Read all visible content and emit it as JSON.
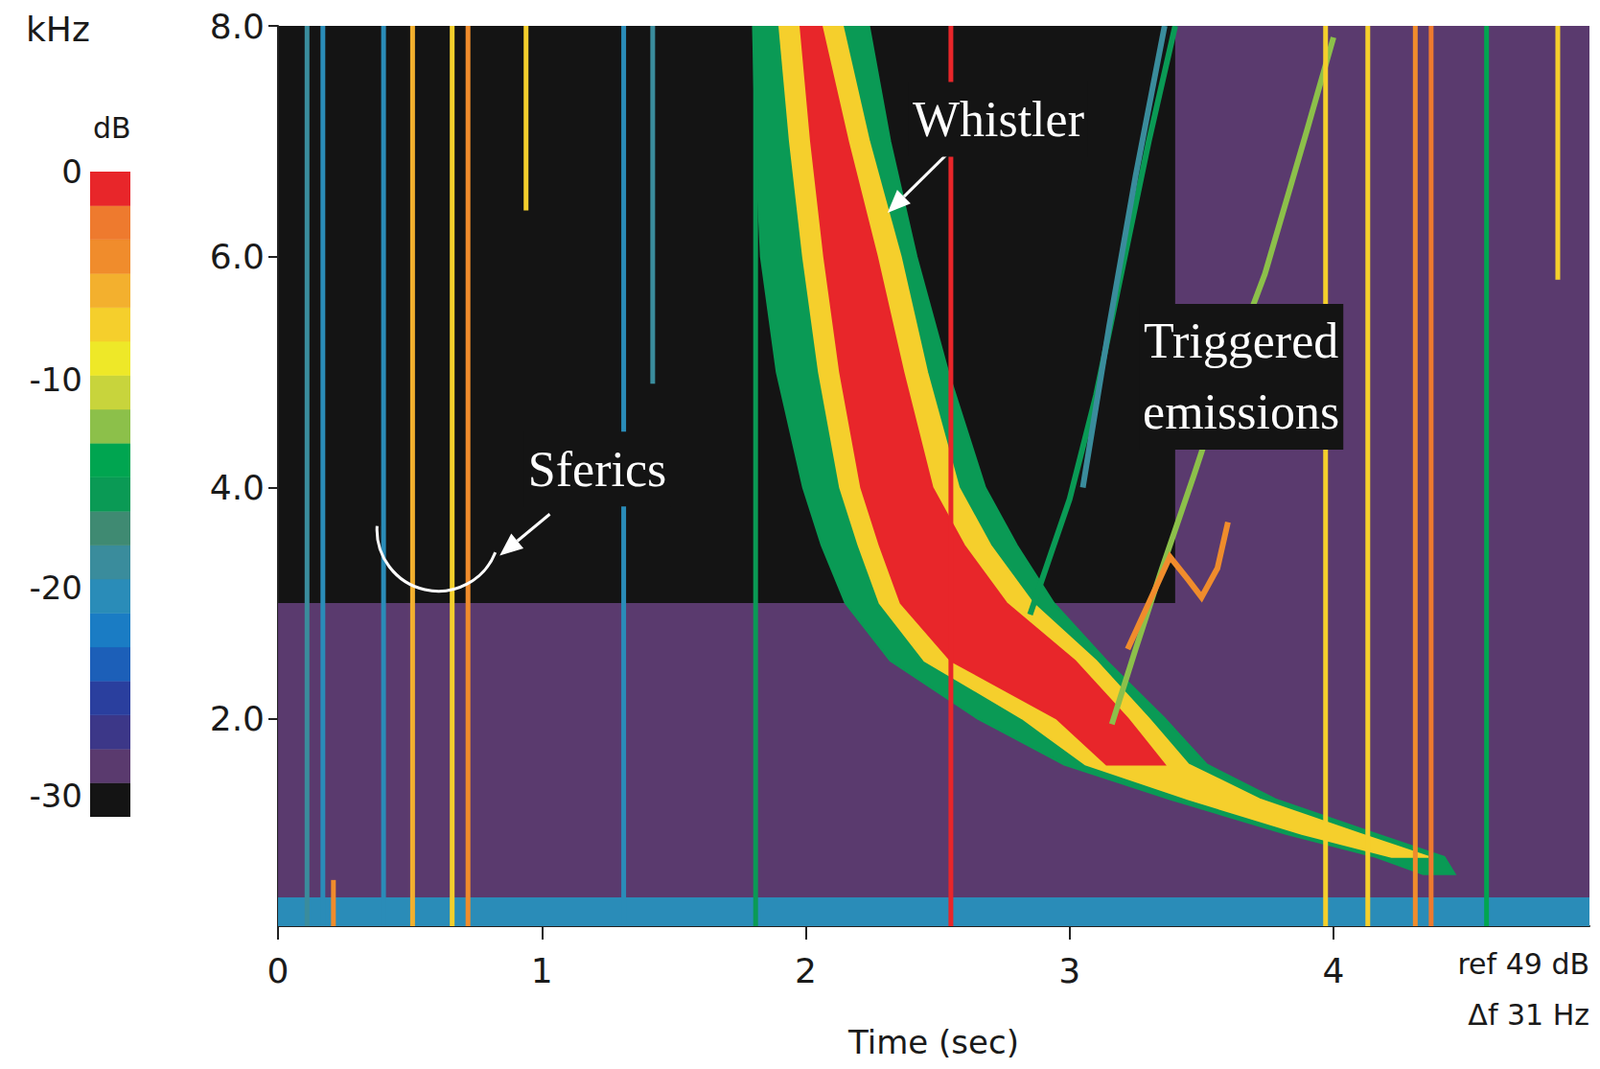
{
  "chart_data": {
    "type": "spectrogram",
    "xlabel": "Time (sec)",
    "ylabel": "kHz",
    "xlim": [
      0,
      4.97
    ],
    "xticks": [
      0,
      1,
      2,
      3,
      4
    ],
    "ylim": [
      0.2,
      8.0
    ],
    "yticks": [
      {
        "value": 2,
        "label": "2.0"
      },
      {
        "value": 4,
        "label": "4.0"
      },
      {
        "value": 6,
        "label": "6.0"
      },
      {
        "value": 8,
        "label": "8.0"
      }
    ],
    "colorbar": {
      "label": "dB",
      "range": [
        -31,
        0
      ],
      "ticks": [
        0,
        -10,
        -20,
        -30
      ],
      "colors": [
        "#141414",
        "#5a3a6e",
        "#3c3788",
        "#2a3f9e",
        "#1c5fb8",
        "#1a7cc4",
        "#2a8cb8",
        "#3a8c9c",
        "#3f8a72",
        "#0a9a55",
        "#00a550",
        "#8cc04a",
        "#c8d43c",
        "#eee828",
        "#f5cf2c",
        "#f3b02e",
        "#f08c2c",
        "#ee7a2e",
        "#e8262a"
      ]
    },
    "notes": [
      "ref 49 dB",
      "Δf 31 Hz"
    ],
    "noise": [
      {
        "t": [
          0,
          4.97
        ],
        "f": [
          0.2,
          0.45
        ],
        "level": -21
      },
      {
        "t": [
          0,
          4.97
        ],
        "f": [
          0.45,
          3.0
        ],
        "level": -28
      },
      {
        "t": [
          3.4,
          4.97
        ],
        "f": [
          3.0,
          8.0
        ],
        "level": -28
      }
    ],
    "sferics": {
      "t": [
        0.11,
        0.17,
        0.21,
        0.4,
        0.51,
        0.66,
        0.72,
        0.94,
        1.31,
        1.42,
        1.81,
        2.55,
        3.97,
        4.13,
        4.31,
        4.37,
        4.58,
        4.85
      ],
      "f_low": [
        0.2,
        0.2,
        0.2,
        0.2,
        0.2,
        0.2,
        0.2,
        6.4,
        0.2,
        4.9,
        0.2,
        0.2,
        0.2,
        0.2,
        0.2,
        0.2,
        0.2,
        5.8
      ],
      "f_high": [
        8.0,
        8.0,
        0.6,
        8.0,
        8.0,
        8.0,
        8.0,
        8.0,
        8.0,
        8.0,
        8.0,
        8.0,
        8.0,
        8.0,
        8.0,
        8.0,
        8.0,
        8.0
      ],
      "levels": [
        -18,
        -20,
        -4,
        -20,
        -6,
        -8,
        -4,
        -8,
        -20,
        -18,
        -16,
        0,
        -8,
        -8,
        -4,
        -2,
        -14,
        -8
      ]
    },
    "whistler": [
      {
        "level": -15,
        "f": [
          8,
          7,
          6,
          5,
          4,
          3.5,
          3,
          2.5,
          2,
          1.6,
          1.3,
          1.0,
          0.8,
          0.65
        ],
        "t_start": [
          1.8,
          1.81,
          1.83,
          1.89,
          1.99,
          2.06,
          2.15,
          2.32,
          2.65,
          2.98,
          3.38,
          3.82,
          4.16,
          4.34
        ],
        "t_end": [
          2.24,
          2.32,
          2.42,
          2.54,
          2.68,
          2.8,
          2.94,
          3.14,
          3.36,
          3.52,
          3.78,
          4.16,
          4.42,
          4.46
        ]
      },
      {
        "level": -8,
        "f": [
          8,
          7,
          6,
          5,
          4,
          3.5,
          3,
          2.5,
          2,
          1.6,
          1.3,
          1.0,
          0.8
        ],
        "t_start": [
          1.9,
          1.94,
          1.99,
          2.05,
          2.13,
          2.2,
          2.28,
          2.45,
          2.82,
          3.06,
          3.45,
          3.88,
          4.22
        ],
        "t_end": [
          2.14,
          2.24,
          2.36,
          2.46,
          2.58,
          2.7,
          2.86,
          3.1,
          3.3,
          3.45,
          3.72,
          4.1,
          4.36
        ]
      },
      {
        "level": 0,
        "f": [
          8,
          7,
          6,
          5,
          4,
          3.5,
          3,
          2.5,
          2,
          1.6
        ],
        "t_start": [
          1.98,
          2.02,
          2.07,
          2.13,
          2.21,
          2.28,
          2.36,
          2.55,
          2.95,
          3.14
        ],
        "t_end": [
          2.06,
          2.16,
          2.27,
          2.37,
          2.48,
          2.6,
          2.76,
          3.02,
          3.22,
          3.36
        ]
      }
    ],
    "triggered_emissions": [
      {
        "t": [
          2.85,
          3.0,
          3.1,
          3.2,
          3.3,
          3.4
        ],
        "f": [
          2.9,
          3.9,
          4.8,
          5.9,
          7.0,
          8.0
        ],
        "level": -16
      },
      {
        "t": [
          3.16,
          3.25,
          3.35,
          3.47,
          3.6,
          3.74,
          3.9,
          4.0
        ],
        "f": [
          1.95,
          2.6,
          3.3,
          4.1,
          5.0,
          5.85,
          7.1,
          7.9
        ],
        "level": -12
      },
      {
        "t": [
          3.22,
          3.3,
          3.38,
          3.45,
          3.5,
          3.56,
          3.6
        ],
        "f": [
          2.6,
          3.0,
          3.4,
          3.2,
          3.05,
          3.3,
          3.7
        ],
        "level": -4
      },
      {
        "t": [
          3.05,
          3.15,
          3.25,
          3.36
        ],
        "f": [
          4.0,
          5.4,
          6.7,
          8.0
        ],
        "level": -18
      }
    ],
    "annotations": [
      {
        "text": "Whistler",
        "x": 2.73,
        "y": 7.19,
        "arrow": [
          [
            2.58,
            6.99
          ],
          [
            2.31,
            6.38
          ]
        ]
      },
      {
        "text": "Triggered emissions",
        "x": 3.65,
        "y": 4.96
      },
      {
        "text": "Sferics",
        "x": 1.21,
        "y": 4.16,
        "arrow": [
          [
            1.03,
            3.77
          ],
          [
            0.84,
            3.41
          ]
        ],
        "marker": "circle"
      }
    ]
  }
}
